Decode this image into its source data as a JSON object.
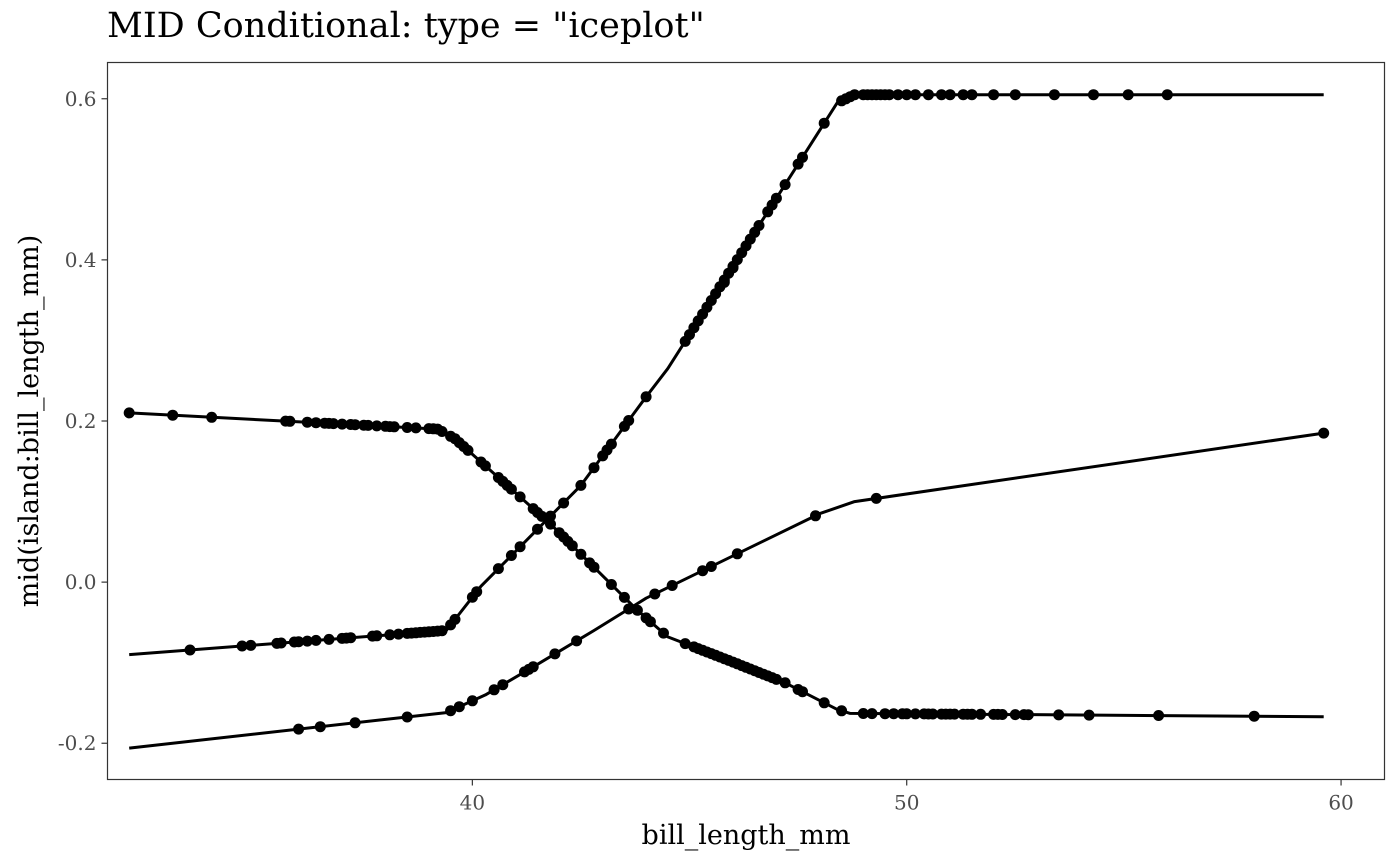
{
  "chart_data": {
    "type": "line",
    "title": "MID Conditional: type = \"iceplot\"",
    "xlabel": "bill_length_mm",
    "ylabel": "mid(island:bill_length_mm)",
    "xlim": [
      31.6,
      61.0
    ],
    "ylim": [
      -0.245,
      0.645
    ],
    "xticks": [
      40,
      50,
      60
    ],
    "xtick_labels": [
      "40",
      "50",
      "60"
    ],
    "yticks": [
      -0.2,
      0.0,
      0.2,
      0.4,
      0.6
    ],
    "ytick_labels": [
      "-0.2",
      "0.0",
      "0.2",
      "0.4",
      "0.6"
    ],
    "grid": false,
    "legend": "none",
    "colors": {
      "line": "#000000",
      "point": "#000000",
      "panel_border": "#333333"
    },
    "series": [
      {
        "curve": [
          [
            32.1,
            0.21
          ],
          [
            39.2,
            0.19
          ],
          [
            39.6,
            0.178
          ],
          [
            41.8,
            0.072
          ],
          [
            43.8,
            -0.035
          ],
          [
            44.5,
            -0.068
          ],
          [
            45.8,
            -0.095
          ],
          [
            47.2,
            -0.125
          ],
          [
            48.4,
            -0.158
          ],
          [
            48.7,
            -0.163
          ],
          [
            59.6,
            -0.167
          ]
        ],
        "points_x": [
          32.1,
          33.1,
          34.0,
          35.7,
          35.8,
          36.2,
          36.4,
          36.6,
          36.7,
          36.8,
          37.0,
          37.2,
          37.3,
          37.5,
          37.6,
          37.8,
          38.0,
          38.1,
          38.2,
          38.5,
          38.7,
          39.0,
          39.1,
          39.2,
          39.3,
          39.5,
          39.6,
          39.7,
          39.8,
          39.9,
          40.2,
          40.3,
          40.6,
          40.7,
          40.8,
          40.9,
          41.1,
          41.4,
          41.5,
          41.6,
          41.8,
          42.0,
          42.1,
          42.2,
          42.3,
          42.5,
          42.7,
          42.8,
          43.2,
          43.5,
          43.8,
          44.0,
          44.1,
          44.4,
          44.9,
          45.1,
          45.2,
          45.3,
          45.4,
          45.5,
          45.6,
          45.7,
          45.8,
          45.9,
          46.0,
          46.1,
          46.2,
          46.3,
          46.4,
          46.5,
          46.6,
          46.7,
          46.8,
          46.9,
          47.0,
          47.2,
          47.5,
          47.6,
          48.1,
          48.5,
          49.0,
          49.2,
          49.5,
          49.7,
          49.9,
          50.0,
          50.2,
          50.4,
          50.5,
          50.6,
          50.8,
          50.9,
          51.0,
          51.1,
          51.3,
          51.4,
          51.5,
          51.7,
          52.0,
          52.1,
          52.2,
          52.5,
          52.7,
          52.8,
          53.5,
          54.2,
          55.8,
          58.0
        ]
      },
      {
        "curve": [
          [
            32.1,
            -0.09
          ],
          [
            39.4,
            -0.06
          ],
          [
            40.2,
            -0.005
          ],
          [
            42.5,
            0.12
          ],
          [
            44.0,
            0.23
          ],
          [
            44.5,
            0.265
          ],
          [
            48.4,
            0.595
          ],
          [
            48.8,
            0.605
          ],
          [
            59.6,
            0.605
          ]
        ],
        "points_x": [
          33.5,
          34.7,
          34.9,
          35.5,
          35.6,
          35.9,
          36.0,
          36.2,
          36.4,
          36.7,
          37.0,
          37.1,
          37.2,
          37.7,
          37.8,
          38.1,
          38.3,
          38.5,
          38.6,
          38.7,
          38.8,
          38.9,
          39.0,
          39.1,
          39.2,
          39.3,
          39.5,
          39.6,
          40.0,
          40.1,
          40.6,
          40.9,
          41.1,
          41.5,
          41.8,
          42.1,
          42.5,
          42.8,
          43.0,
          43.1,
          43.2,
          43.5,
          43.6,
          44.0,
          44.9,
          45.0,
          45.1,
          45.2,
          45.3,
          45.4,
          45.5,
          45.6,
          45.7,
          45.8,
          45.9,
          46.0,
          46.1,
          46.2,
          46.3,
          46.4,
          46.5,
          46.6,
          46.8,
          46.9,
          47.0,
          47.2,
          47.5,
          47.6,
          48.1,
          48.5,
          48.6,
          48.7,
          48.8,
          49.0,
          49.1,
          49.2,
          49.3,
          49.4,
          49.5,
          49.6,
          49.8,
          50.0,
          50.2,
          50.5,
          50.8,
          51.0,
          51.3,
          51.5,
          52.0,
          52.5,
          53.4,
          54.3,
          55.1,
          56.0
        ]
      },
      {
        "curve": [
          [
            32.1,
            -0.206
          ],
          [
            39.4,
            -0.162
          ],
          [
            40.3,
            -0.14
          ],
          [
            41.5,
            -0.102
          ],
          [
            42.8,
            -0.06
          ],
          [
            44.0,
            -0.02
          ],
          [
            48.0,
            0.085
          ],
          [
            48.8,
            0.1
          ],
          [
            59.6,
            0.185
          ]
        ],
        "points_x": [
          36.0,
          36.5,
          37.3,
          38.5,
          39.5,
          39.7,
          40.0,
          40.5,
          40.7,
          41.2,
          41.3,
          41.4,
          41.9,
          42.4,
          43.6,
          44.2,
          44.6,
          45.3,
          45.5,
          46.1,
          47.9,
          49.3,
          59.6
        ]
      }
    ],
    "point_annotations": [
      {
        "x": 45.8,
        "y": 0.372
      },
      {
        "x": 46.0,
        "y": 0.39
      }
    ]
  }
}
